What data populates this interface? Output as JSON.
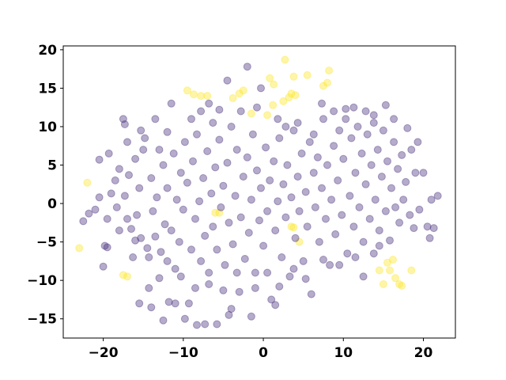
{
  "chart_data": {
    "type": "scatter",
    "title": "",
    "xlabel": "",
    "ylabel": "",
    "xlim": [
      -25,
      24
    ],
    "ylim": [
      -17.5,
      20.5
    ],
    "grid": false,
    "legend": "none",
    "xticks": [
      -20,
      -10,
      0,
      10,
      20
    ],
    "yticks": [
      -15,
      -10,
      -5,
      0,
      5,
      10,
      15,
      20
    ],
    "xtick_labels": [
      "−20",
      "−10",
      "0",
      "10",
      "20"
    ],
    "ytick_labels": [
      "−15",
      "−10",
      "−5",
      "0",
      "5",
      "10",
      "15",
      "20"
    ],
    "marker_alpha": 0.4,
    "series": [
      {
        "color": "#fde725",
        "points": [
          [
            -23.0,
            -5.8
          ],
          [
            -22.0,
            2.7
          ],
          [
            -17.5,
            -9.3
          ],
          [
            -17.0,
            -9.5
          ],
          [
            -9.5,
            14.7
          ],
          [
            -8.7,
            14.2
          ],
          [
            -7.8,
            14.0
          ],
          [
            -7.0,
            14.0
          ],
          [
            -6.0,
            -1.2
          ],
          [
            -5.5,
            -1.2
          ],
          [
            -3.8,
            13.7
          ],
          [
            -3.0,
            14.3
          ],
          [
            -2.5,
            14.7
          ],
          [
            -1.5,
            11.7
          ],
          [
            0.5,
            11.5
          ],
          [
            0.8,
            16.3
          ],
          [
            1.3,
            15.5
          ],
          [
            1.2,
            12.8
          ],
          [
            2.5,
            13.3
          ],
          [
            2.7,
            18.7
          ],
          [
            3.2,
            13.8
          ],
          [
            3.5,
            14.3
          ],
          [
            3.8,
            16.5
          ],
          [
            4.0,
            14.1
          ],
          [
            3.5,
            -3.0
          ],
          [
            3.8,
            -3.1
          ],
          [
            4.5,
            -5.0
          ],
          [
            5.5,
            16.7
          ],
          [
            7.5,
            15.3
          ],
          [
            8.2,
            17.3
          ],
          [
            8.0,
            15.7
          ],
          [
            14.5,
            -8.7
          ],
          [
            15.5,
            -7.7
          ],
          [
            15.8,
            -8.7
          ],
          [
            16.2,
            -7.3
          ],
          [
            16.5,
            -9.7
          ],
          [
            17.0,
            -10.5
          ],
          [
            17.3,
            -10.7
          ],
          [
            18.5,
            -8.7
          ],
          [
            15.0,
            -10.5
          ]
        ]
      },
      {
        "color": "#472c7a",
        "points": [
          [
            -22.5,
            -2.3
          ],
          [
            -21.8,
            -1.3
          ],
          [
            -21.0,
            -0.8
          ],
          [
            -20.5,
            0.8
          ],
          [
            -20.5,
            5.7
          ],
          [
            -20.0,
            -8.2
          ],
          [
            -19.8,
            -5.5
          ],
          [
            -19.5,
            -5.7
          ],
          [
            -19.3,
            6.5
          ],
          [
            -19.0,
            1.3
          ],
          [
            -18.5,
            3.0
          ],
          [
            -18.3,
            -0.5
          ],
          [
            -18.0,
            4.5
          ],
          [
            -17.5,
            11.0
          ],
          [
            -17.3,
            10.3
          ],
          [
            -17.0,
            8.0
          ],
          [
            -17.0,
            -2.0
          ],
          [
            -16.8,
            3.7
          ],
          [
            -16.5,
            -3.3
          ],
          [
            -16.3,
            -7.0
          ],
          [
            -16.0,
            5.8
          ],
          [
            -15.8,
            -1.5
          ],
          [
            -15.5,
            2.0
          ],
          [
            -15.3,
            -4.5
          ],
          [
            -15.0,
            7.0
          ],
          [
            -14.5,
            -5.8
          ],
          [
            -14.3,
            -11.0
          ],
          [
            -14.0,
            3.3
          ],
          [
            -13.8,
            -1.0
          ],
          [
            -13.5,
            -4.3
          ],
          [
            -13.3,
            0.8
          ],
          [
            -13.0,
            7.0
          ],
          [
            -13.0,
            -9.7
          ],
          [
            -12.8,
            -6.3
          ],
          [
            -12.5,
            5.0
          ],
          [
            -12.3,
            -2.7
          ],
          [
            -12.0,
            2.0
          ],
          [
            -12.0,
            9.3
          ],
          [
            -11.8,
            -12.8
          ],
          [
            -11.5,
            -3.5
          ],
          [
            -11.2,
            6.5
          ],
          [
            -11.0,
            -8.5
          ],
          [
            -10.8,
            0.5
          ],
          [
            -10.5,
            -5.0
          ],
          [
            -10.3,
            4.0
          ],
          [
            -10.0,
            -0.8
          ],
          [
            -9.8,
            8.0
          ],
          [
            -9.5,
            2.7
          ],
          [
            -9.3,
            -13.0
          ],
          [
            -9.0,
            -6.0
          ],
          [
            -8.8,
            5.5
          ],
          [
            -8.5,
            -2.0
          ],
          [
            -8.3,
            9.0
          ],
          [
            -8.0,
            0.3
          ],
          [
            -7.8,
            -7.5
          ],
          [
            -7.5,
            3.3
          ],
          [
            -7.3,
            -4.2
          ],
          [
            -7.0,
            6.8
          ],
          [
            -6.8,
            -10.5
          ],
          [
            -6.5,
            1.3
          ],
          [
            -6.3,
            -3.0
          ],
          [
            -6.0,
            4.7
          ],
          [
            -5.8,
            -6.0
          ],
          [
            -5.5,
            8.3
          ],
          [
            -5.3,
            -0.5
          ],
          [
            -5.0,
            2.3
          ],
          [
            -4.8,
            -8.0
          ],
          [
            -4.5,
            5.3
          ],
          [
            -4.3,
            -2.5
          ],
          [
            -4.0,
            10.0
          ],
          [
            -3.8,
            -5.3
          ],
          [
            -3.5,
            1.0
          ],
          [
            -3.3,
            7.0
          ],
          [
            -3.0,
            -11.5
          ],
          [
            -2.8,
            -1.8
          ],
          [
            -2.5,
            3.5
          ],
          [
            -2.3,
            -7.2
          ],
          [
            -2.0,
            6.0
          ],
          [
            -1.8,
            -3.8
          ],
          [
            -1.5,
            0.5
          ],
          [
            -1.3,
            9.0
          ],
          [
            -1.0,
            -9.0
          ],
          [
            -0.8,
            4.3
          ],
          [
            -0.5,
            -2.2
          ],
          [
            -0.3,
            2.0
          ],
          [
            0.0,
            -5.5
          ],
          [
            0.3,
            7.3
          ],
          [
            0.5,
            -1.0
          ],
          [
            0.8,
            3.0
          ],
          [
            1.0,
            -12.5
          ],
          [
            1.3,
            5.5
          ],
          [
            1.5,
            -3.5
          ],
          [
            1.8,
            0.3
          ],
          [
            2.0,
            8.5
          ],
          [
            2.3,
            -7.0
          ],
          [
            2.5,
            2.5
          ],
          [
            2.8,
            -1.8
          ],
          [
            3.0,
            5.0
          ],
          [
            3.3,
            -9.5
          ],
          [
            3.5,
            0.8
          ],
          [
            3.8,
            9.5
          ],
          [
            4.0,
            -4.5
          ],
          [
            4.3,
            3.5
          ],
          [
            4.5,
            -1.0
          ],
          [
            4.8,
            6.5
          ],
          [
            5.0,
            -7.5
          ],
          [
            5.3,
            1.5
          ],
          [
            5.5,
            -3.0
          ],
          [
            5.8,
            8.0
          ],
          [
            6.0,
            -11.8
          ],
          [
            6.3,
            4.0
          ],
          [
            6.5,
            -0.5
          ],
          [
            6.8,
            6.0
          ],
          [
            7.0,
            -5.0
          ],
          [
            7.3,
            2.0
          ],
          [
            7.5,
            11.0
          ],
          [
            7.8,
            -2.0
          ],
          [
            8.0,
            5.0
          ],
          [
            8.3,
            -8.0
          ],
          [
            8.5,
            0.5
          ],
          [
            8.8,
            7.5
          ],
          [
            9.0,
            -4.0
          ],
          [
            9.3,
            3.0
          ],
          [
            9.5,
            9.5
          ],
          [
            9.8,
            -1.5
          ],
          [
            10.0,
            5.8
          ],
          [
            10.3,
            12.3
          ],
          [
            10.5,
            -6.5
          ],
          [
            10.8,
            1.0
          ],
          [
            11.0,
            8.5
          ],
          [
            11.3,
            -3.0
          ],
          [
            11.5,
            4.0
          ],
          [
            11.8,
            10.0
          ],
          [
            12.0,
            -0.5
          ],
          [
            12.3,
            6.5
          ],
          [
            12.5,
            -5.0
          ],
          [
            12.8,
            2.5
          ],
          [
            13.0,
            9.0
          ],
          [
            13.3,
            -2.0
          ],
          [
            13.5,
            5.0
          ],
          [
            13.8,
            11.5
          ],
          [
            14.0,
            0.5
          ],
          [
            14.3,
            7.0
          ],
          [
            14.5,
            -3.5
          ],
          [
            14.8,
            3.5
          ],
          [
            15.0,
            9.5
          ],
          [
            15.3,
            -1.0
          ],
          [
            15.5,
            5.5
          ],
          [
            15.8,
            -4.8
          ],
          [
            16.0,
            2.0
          ],
          [
            16.3,
            8.0
          ],
          [
            16.5,
            -0.5
          ],
          [
            16.8,
            4.5
          ],
          [
            17.0,
            -2.5
          ],
          [
            17.3,
            6.3
          ],
          [
            17.5,
            0.5
          ],
          [
            17.8,
            2.8
          ],
          [
            18.0,
            9.8
          ],
          [
            18.3,
            -1.5
          ],
          [
            18.5,
            7.0
          ],
          [
            18.8,
            -3.2
          ],
          [
            19.0,
            4.0
          ],
          [
            19.3,
            8.0
          ],
          [
            19.5,
            -0.8
          ],
          [
            20.0,
            4.0
          ],
          [
            20.5,
            -3.0
          ],
          [
            20.8,
            -4.5
          ],
          [
            21.0,
            0.5
          ],
          [
            21.3,
            -3.2
          ],
          [
            21.8,
            1.0
          ],
          [
            -17.3,
            1.0
          ],
          [
            -15.5,
            -13.0
          ],
          [
            -14.0,
            -13.5
          ],
          [
            -12.5,
            -15.2
          ],
          [
            -11.0,
            -13.0
          ],
          [
            -9.8,
            -15.0
          ],
          [
            -8.3,
            -15.8
          ],
          [
            -7.3,
            -15.7
          ],
          [
            -5.8,
            -15.7
          ],
          [
            -4.3,
            -14.5
          ],
          [
            -4.0,
            -13.7
          ],
          [
            -1.5,
            -14.7
          ],
          [
            1.5,
            -13.2
          ],
          [
            -7.8,
            12.0
          ],
          [
            -6.8,
            13.0
          ],
          [
            -5.5,
            12.2
          ],
          [
            -4.5,
            16.0
          ],
          [
            -2.0,
            17.8
          ],
          [
            -0.3,
            15.0
          ],
          [
            -11.5,
            13.0
          ],
          [
            -13.5,
            11.0
          ],
          [
            -15.3,
            9.5
          ],
          [
            -14.8,
            8.5
          ],
          [
            -9.0,
            11.0
          ],
          [
            -6.3,
            10.5
          ],
          [
            -2.8,
            12.0
          ],
          [
            -0.8,
            12.5
          ],
          [
            1.8,
            11.0
          ],
          [
            2.8,
            10.0
          ],
          [
            4.3,
            10.5
          ],
          [
            6.3,
            9.0
          ],
          [
            7.3,
            13.0
          ],
          [
            8.8,
            12.0
          ],
          [
            10.3,
            11.0
          ],
          [
            11.3,
            12.5
          ],
          [
            12.8,
            12.0
          ],
          [
            13.8,
            10.5
          ],
          [
            15.3,
            12.8
          ],
          [
            16.3,
            11.0
          ],
          [
            -19.5,
            -2.0
          ],
          [
            -18.0,
            -3.5
          ],
          [
            -16.0,
            -4.8
          ],
          [
            -14.3,
            -7.0
          ],
          [
            -12.0,
            -7.5
          ],
          [
            -10.3,
            -9.5
          ],
          [
            -8.5,
            -11.0
          ],
          [
            -6.8,
            -9.0
          ],
          [
            -5.0,
            -11.3
          ],
          [
            -3.3,
            -9.0
          ],
          [
            -1.0,
            -11.0
          ],
          [
            0.5,
            -9.0
          ],
          [
            2.0,
            -10.8
          ],
          [
            3.8,
            -8.5
          ],
          [
            5.3,
            -9.8
          ],
          [
            7.5,
            -7.3
          ],
          [
            9.5,
            -8.0
          ],
          [
            11.5,
            -7.0
          ],
          [
            12.5,
            -9.5
          ],
          [
            13.8,
            -6.5
          ],
          [
            14.5,
            -5.5
          ]
        ]
      }
    ]
  }
}
